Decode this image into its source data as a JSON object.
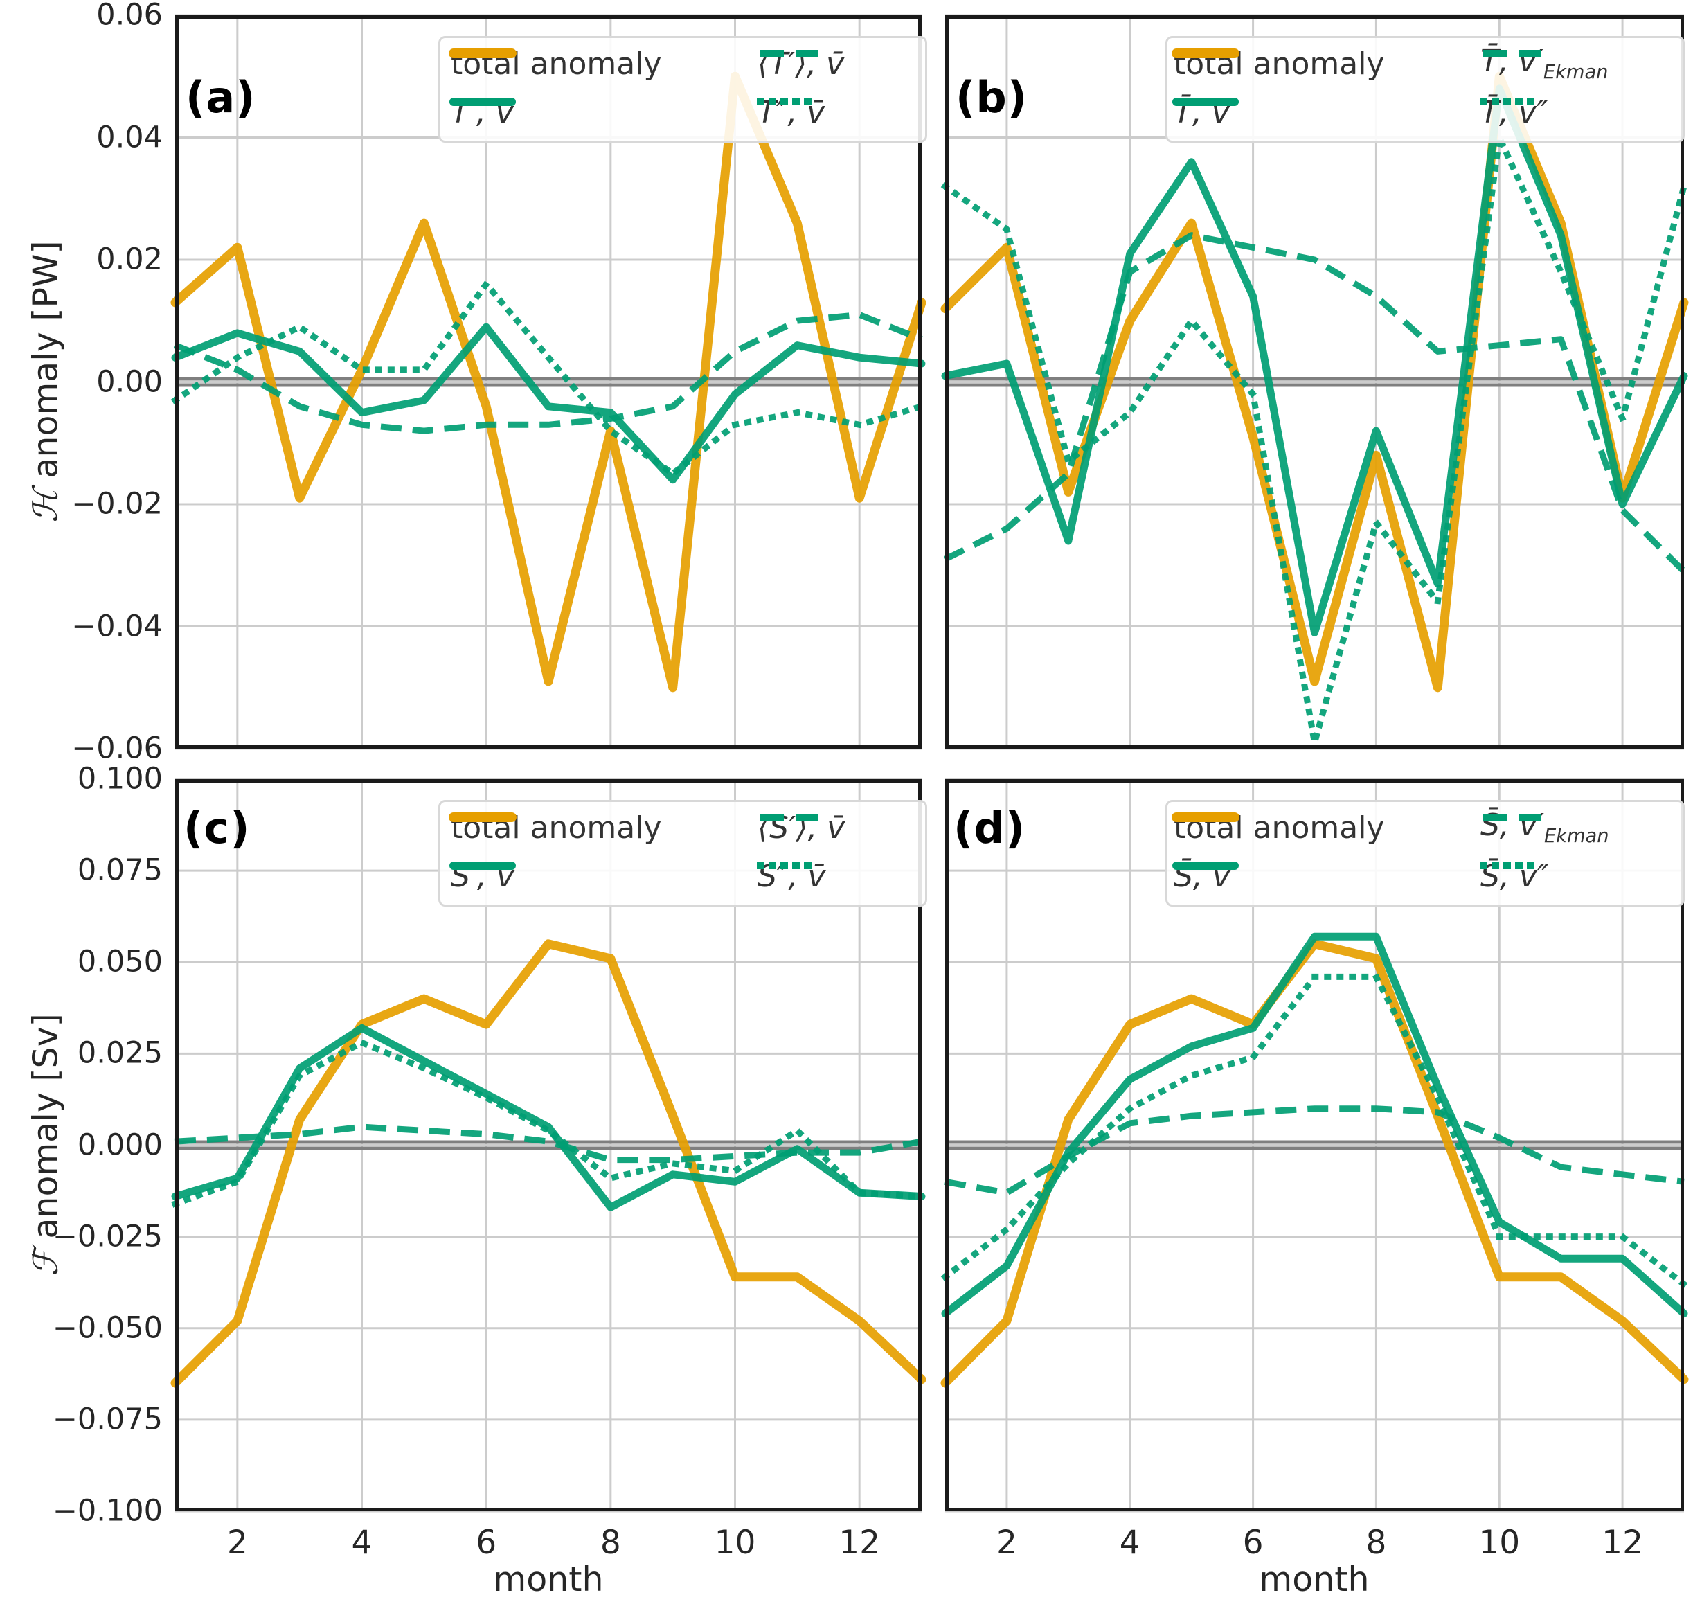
{
  "colors": {
    "total_anomaly": "#E69F00",
    "green_series": "#009E73",
    "grid": "#cccccc",
    "zero_line": "#7f7f7f",
    "spine": "#1a1a1a",
    "text": "#262626",
    "background": "#ffffff"
  },
  "chart_data": [
    {
      "id": "a",
      "label": "(a)",
      "type": "line",
      "xlim": [
        1,
        13
      ],
      "ylim": [
        -0.06,
        0.06
      ],
      "x": [
        1,
        2,
        3,
        4,
        5,
        6,
        7,
        8,
        9,
        10,
        11,
        12,
        13
      ],
      "xgrid": [
        2,
        4,
        6,
        8,
        10,
        12
      ],
      "ygrid": [
        0.06,
        0.04,
        0.02,
        0,
        -0.02,
        -0.04,
        -0.06
      ],
      "ylabel_math": "ℋ",
      "ylabel_text": " anomaly [PW]",
      "ytick_labels": [
        {
          "v": 0.06,
          "label": "0.06"
        },
        {
          "v": 0.04,
          "label": "0.04"
        },
        {
          "v": 0.02,
          "label": "0.02"
        },
        {
          "v": 0.0,
          "label": "0.00"
        },
        {
          "v": -0.02,
          "label": "−0.02"
        },
        {
          "v": -0.04,
          "label": "−0.04"
        },
        {
          "v": -0.06,
          "label": "−0.06"
        }
      ],
      "series": [
        {
          "name": "total anomaly",
          "math": false,
          "style": "solid",
          "color": "#E69F00",
          "width": 13,
          "values": [
            0.013,
            0.022,
            -0.019,
            0.002,
            0.026,
            -0.004,
            -0.049,
            -0.008,
            -0.05,
            0.05,
            0.026,
            -0.019,
            0.013
          ]
        },
        {
          "name": "T′, v̄",
          "math": true,
          "style": "solid",
          "color": "#009E73",
          "width": 11,
          "values": [
            0.004,
            0.008,
            0.005,
            -0.005,
            -0.003,
            0.009,
            -0.004,
            -0.005,
            -0.016,
            -0.002,
            0.006,
            0.004,
            0.003
          ]
        },
        {
          "name": "⟨T′⟩, v̄",
          "math": true,
          "style": "dashed",
          "color": "#009E73",
          "width": 9,
          "values": [
            0.006,
            0.002,
            -0.004,
            -0.007,
            -0.008,
            -0.007,
            -0.007,
            -0.006,
            -0.004,
            0.005,
            0.01,
            0.011,
            0.007
          ]
        },
        {
          "name": "T″, v̄",
          "math": true,
          "style": "dotted",
          "color": "#009E73",
          "width": 9,
          "values": [
            -0.003,
            0.004,
            0.009,
            0.002,
            0.002,
            0.016,
            0.004,
            -0.008,
            -0.015,
            -0.007,
            -0.005,
            -0.007,
            -0.004
          ]
        }
      ]
    },
    {
      "id": "b",
      "label": "(b)",
      "type": "line",
      "xlim": [
        1,
        13
      ],
      "ylim": [
        -0.06,
        0.06
      ],
      "x": [
        1,
        2,
        3,
        4,
        5,
        6,
        7,
        8,
        9,
        10,
        11,
        12,
        13
      ],
      "xgrid": [
        2,
        4,
        6,
        8,
        10,
        12
      ],
      "ygrid": [
        0.06,
        0.04,
        0.02,
        0,
        -0.02,
        -0.04,
        -0.06
      ],
      "series": [
        {
          "name": "total anomaly",
          "math": false,
          "style": "solid",
          "color": "#E69F00",
          "width": 13,
          "values": [
            0.012,
            0.022,
            -0.018,
            0.01,
            0.026,
            -0.009,
            -0.049,
            -0.012,
            -0.05,
            0.05,
            0.026,
            -0.019,
            0.013
          ]
        },
        {
          "name": "T̄, v′",
          "math": true,
          "style": "solid",
          "color": "#009E73",
          "width": 11,
          "values": [
            0.001,
            0.003,
            -0.026,
            0.021,
            0.036,
            0.014,
            -0.041,
            -0.008,
            -0.033,
            0.048,
            0.024,
            -0.02,
            0.001
          ]
        },
        {
          "name": "T̄, v′",
          "name_sub": "Ekman",
          "math": true,
          "style": "dashed",
          "color": "#009E73",
          "width": 9,
          "values": [
            -0.029,
            -0.024,
            -0.015,
            0.018,
            0.024,
            0.022,
            0.02,
            0.014,
            0.005,
            0.006,
            0.007,
            -0.021,
            -0.031
          ]
        },
        {
          "name": "T̄, v″",
          "math": true,
          "style": "dotted",
          "color": "#009E73",
          "width": 9,
          "values": [
            0.032,
            0.025,
            -0.013,
            -0.005,
            0.01,
            -0.002,
            -0.059,
            -0.023,
            -0.036,
            0.04,
            0.018,
            -0.006,
            0.032
          ]
        }
      ]
    },
    {
      "id": "c",
      "label": "(c)",
      "type": "line",
      "xlim": [
        1,
        13
      ],
      "ylim": [
        -0.1,
        0.1
      ],
      "x": [
        1,
        2,
        3,
        4,
        5,
        6,
        7,
        8,
        9,
        10,
        11,
        12,
        13
      ],
      "xgrid": [
        2,
        4,
        6,
        8,
        10,
        12
      ],
      "ygrid": [
        0.1,
        0.075,
        0.05,
        0.025,
        0,
        -0.025,
        -0.05,
        -0.075,
        -0.1
      ],
      "xlabel": "month",
      "ylabel_math": "ℱ",
      "ylabel_text": " anomaly [Sv]",
      "ytick_labels": [
        {
          "v": 0.1,
          "label": "0.100"
        },
        {
          "v": 0.075,
          "label": "0.075"
        },
        {
          "v": 0.05,
          "label": "0.050"
        },
        {
          "v": 0.025,
          "label": "0.025"
        },
        {
          "v": 0.0,
          "label": "0.000"
        },
        {
          "v": -0.025,
          "label": "−0.025"
        },
        {
          "v": -0.05,
          "label": "−0.050"
        },
        {
          "v": -0.075,
          "label": "−0.075"
        },
        {
          "v": -0.1,
          "label": "−0.100"
        }
      ],
      "xtick_labels": [
        {
          "v": 2,
          "label": "2"
        },
        {
          "v": 4,
          "label": "4"
        },
        {
          "v": 6,
          "label": "6"
        },
        {
          "v": 8,
          "label": "8"
        },
        {
          "v": 10,
          "label": "10"
        },
        {
          "v": 12,
          "label": "12"
        }
      ],
      "series": [
        {
          "name": "total anomaly",
          "math": false,
          "style": "solid",
          "color": "#E69F00",
          "width": 13,
          "values": [
            -0.065,
            -0.048,
            0.007,
            0.033,
            0.04,
            0.033,
            0.055,
            0.051,
            0.008,
            -0.036,
            -0.036,
            -0.048,
            -0.064
          ]
        },
        {
          "name": "S′, v̄",
          "math": true,
          "style": "solid",
          "color": "#009E73",
          "width": 11,
          "values": [
            -0.014,
            -0.009,
            0.021,
            0.032,
            0.023,
            0.014,
            0.005,
            -0.017,
            -0.008,
            -0.01,
            -0.001,
            -0.013,
            -0.014
          ]
        },
        {
          "name": "⟨S′⟩, v̄",
          "math": true,
          "style": "dashed",
          "color": "#009E73",
          "width": 9,
          "values": [
            0.001,
            0.002,
            0.003,
            0.005,
            0.004,
            0.003,
            0.001,
            -0.004,
            -0.004,
            -0.003,
            -0.002,
            -0.002,
            0.001
          ]
        },
        {
          "name": "S″, v̄",
          "math": true,
          "style": "dotted",
          "color": "#009E73",
          "width": 9,
          "values": [
            -0.016,
            -0.01,
            0.019,
            0.028,
            0.021,
            0.013,
            0.004,
            -0.009,
            -0.005,
            -0.007,
            0.004,
            -0.013,
            -0.014
          ]
        }
      ]
    },
    {
      "id": "d",
      "label": "(d)",
      "type": "line",
      "xlim": [
        1,
        13
      ],
      "ylim": [
        -0.1,
        0.1
      ],
      "x": [
        1,
        2,
        3,
        4,
        5,
        6,
        7,
        8,
        9,
        10,
        11,
        12,
        13
      ],
      "xgrid": [
        2,
        4,
        6,
        8,
        10,
        12
      ],
      "ygrid": [
        0.1,
        0.075,
        0.05,
        0.025,
        0,
        -0.025,
        -0.05,
        -0.075,
        -0.1
      ],
      "xlabel": "month",
      "xtick_labels": [
        {
          "v": 2,
          "label": "2"
        },
        {
          "v": 4,
          "label": "4"
        },
        {
          "v": 6,
          "label": "6"
        },
        {
          "v": 8,
          "label": "8"
        },
        {
          "v": 10,
          "label": "10"
        },
        {
          "v": 12,
          "label": "12"
        }
      ],
      "series": [
        {
          "name": "total anomaly",
          "math": false,
          "style": "solid",
          "color": "#E69F00",
          "width": 13,
          "values": [
            -0.065,
            -0.048,
            0.007,
            0.033,
            0.04,
            0.033,
            0.055,
            0.051,
            0.008,
            -0.036,
            -0.036,
            -0.048,
            -0.064
          ]
        },
        {
          "name": "S̄, v′",
          "math": true,
          "style": "solid",
          "color": "#009E73",
          "width": 11,
          "values": [
            -0.046,
            -0.033,
            -0.002,
            0.018,
            0.027,
            0.032,
            0.057,
            0.057,
            0.016,
            -0.021,
            -0.031,
            -0.031,
            -0.046
          ]
        },
        {
          "name": "S̄, v′",
          "name_sub": "Ekman",
          "math": true,
          "style": "dashed",
          "color": "#009E73",
          "width": 9,
          "values": [
            -0.01,
            -0.013,
            -0.003,
            0.006,
            0.008,
            0.009,
            0.01,
            0.01,
            0.009,
            0.002,
            -0.006,
            -0.008,
            -0.01
          ]
        },
        {
          "name": "S̄, v″",
          "math": true,
          "style": "dotted",
          "color": "#009E73",
          "width": 9,
          "values": [
            -0.036,
            -0.023,
            -0.005,
            0.01,
            0.019,
            0.024,
            0.046,
            0.046,
            0.013,
            -0.025,
            -0.025,
            -0.025,
            -0.038
          ]
        }
      ]
    }
  ]
}
